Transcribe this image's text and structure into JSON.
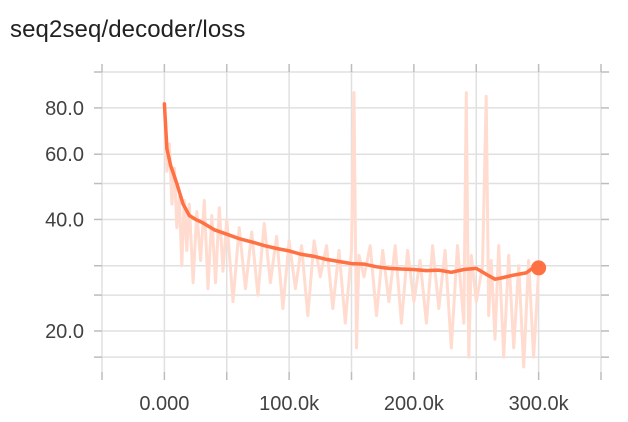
{
  "chart_data": {
    "type": "line",
    "title": "seq2seq/decoder/loss",
    "xlabel": "",
    "ylabel": "",
    "y_scale": "log",
    "xlim": [
      -50000,
      350000
    ],
    "ylim": [
      15.5,
      100
    ],
    "x_ticks": [
      0,
      100000,
      200000,
      300000
    ],
    "x_tick_labels": [
      "0.000",
      "100.0k",
      "200.0k",
      "300.0k"
    ],
    "y_ticks": [
      20,
      40,
      60,
      80
    ],
    "y_tick_labels": [
      "20.0",
      "40.0",
      "60.0",
      "80.0"
    ],
    "grid": true,
    "colors": {
      "smoothed": "#ff7043",
      "raw": "#ffdccf",
      "grid": "#e0e0e0",
      "axis": "#bdbdbd"
    },
    "series": [
      {
        "role": "smoothed",
        "x": [
          0,
          2000,
          5000,
          10000,
          15000,
          20000,
          25000,
          30000,
          40000,
          50000,
          60000,
          70000,
          80000,
          90000,
          100000,
          110000,
          120000,
          130000,
          140000,
          150000,
          160000,
          170000,
          180000,
          190000,
          200000,
          210000,
          220000,
          230000,
          240000,
          250000,
          260000,
          265000,
          270000,
          280000,
          290000,
          295000,
          300000
        ],
        "y": [
          82,
          62,
          56,
          50,
          44,
          41,
          40,
          39.3,
          37.5,
          36.5,
          35.5,
          34.8,
          34,
          33.4,
          32.9,
          32.2,
          31.8,
          31.2,
          30.8,
          30.4,
          30.3,
          29.8,
          29.5,
          29.4,
          29.3,
          29.1,
          29.2,
          28.8,
          29.3,
          29.5,
          28.2,
          27.6,
          27.8,
          28.3,
          28.7,
          29.5,
          29.6
        ]
      },
      {
        "role": "raw",
        "x": [
          0,
          2000,
          4000,
          6000,
          8000,
          10000,
          12000,
          14000,
          16000,
          18000,
          20000,
          23000,
          26000,
          29000,
          32000,
          35000,
          38000,
          41000,
          44000,
          47000,
          50000,
          55000,
          60000,
          65000,
          70000,
          75000,
          80000,
          85000,
          90000,
          95000,
          100000,
          105000,
          110000,
          115000,
          120000,
          125000,
          130000,
          135000,
          140000,
          145000,
          150000,
          152000,
          154000,
          156000,
          160000,
          165000,
          170000,
          175000,
          180000,
          185000,
          190000,
          195000,
          200000,
          205000,
          210000,
          215000,
          220000,
          225000,
          230000,
          235000,
          240000,
          242000,
          244000,
          246000,
          250000,
          255000,
          258000,
          260000,
          262000,
          265000,
          268000,
          272000,
          276000,
          280000,
          284000,
          288000,
          292000,
          296000,
          300000
        ],
        "y": [
          82,
          54,
          64,
          44,
          55,
          38,
          46,
          30,
          45,
          33,
          44,
          27,
          42,
          31,
          45,
          26,
          41,
          27,
          43,
          29,
          40,
          24,
          38,
          26,
          37,
          25,
          39,
          27,
          36,
          23,
          35,
          26,
          34,
          22,
          35,
          28,
          34,
          23,
          33,
          21,
          33,
          88,
          18,
          32,
          28,
          34,
          22,
          33,
          24,
          34,
          21,
          33,
          24,
          31,
          21,
          34,
          23,
          33,
          18,
          34,
          21,
          88,
          17,
          32,
          24,
          30,
          86,
          22,
          31,
          19,
          34,
          17,
          32,
          18,
          30,
          16,
          31,
          17,
          29
        ]
      }
    ],
    "current_point": {
      "x": 300000,
      "y": 29.6
    }
  }
}
